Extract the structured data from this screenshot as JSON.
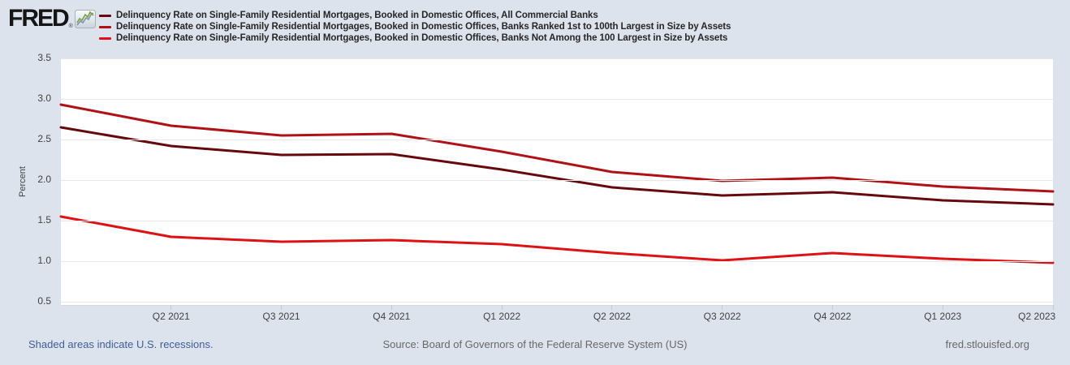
{
  "header": {
    "logo_text": "FRED",
    "registered": "®"
  },
  "chart_data": {
    "type": "line",
    "title": "",
    "ylabel": "Percent",
    "grid": true,
    "legend_position": "top-left",
    "x": [
      "Q1 2021",
      "Q2 2021",
      "Q3 2021",
      "Q4 2021",
      "Q1 2022",
      "Q2 2022",
      "Q3 2022",
      "Q4 2022",
      "Q1 2023",
      "Q2 2023"
    ],
    "x_tick_labels": [
      "Q2 2021",
      "Q3 2021",
      "Q4 2021",
      "Q1 2022",
      "Q2 2022",
      "Q3 2022",
      "Q4 2022",
      "Q1 2023",
      "Q2 2023"
    ],
    "yticks": [
      0.5,
      1.0,
      1.5,
      2.0,
      2.5,
      3.0,
      3.5
    ],
    "ylim": [
      0.46,
      3.5
    ],
    "series": [
      {
        "name": "Delinquency Rate on Single-Family Residential Mortgages, Booked in Domestic Offices, All Commercial Banks",
        "color": "#67090c",
        "values": [
          2.65,
          2.42,
          2.31,
          2.32,
          2.13,
          1.91,
          1.81,
          1.85,
          1.75,
          1.7
        ]
      },
      {
        "name": "Delinquency Rate on Single-Family Residential Mortgages, Booked in Domestic Offices, Banks Ranked 1st to 100th Largest in Size by Assets",
        "color": "#b01116",
        "values": [
          2.93,
          2.67,
          2.55,
          2.57,
          2.35,
          2.1,
          1.99,
          2.03,
          1.92,
          1.86
        ]
      },
      {
        "name": "Delinquency Rate on Single-Family Residential Mortgages, Booked in Domestic Offices, Banks Not Among the 100 Largest in Size by Assets",
        "color": "#de1214",
        "values": [
          1.55,
          1.3,
          1.24,
          1.26,
          1.21,
          1.1,
          1.01,
          1.1,
          1.03,
          0.98
        ]
      }
    ]
  },
  "footer": {
    "note": "Shaded areas indicate U.S. recessions.",
    "source": "Source: Board of Governors of the Federal Reserve System (US)",
    "site": "fred.stlouisfed.org"
  },
  "colors": {
    "background": "#dce3ed",
    "plot_background": "#ffffff",
    "gridline": "#e9e9e9",
    "tick": "#c3cbd9",
    "link_blue": "#3f5e96",
    "axis_text": "#424242"
  }
}
